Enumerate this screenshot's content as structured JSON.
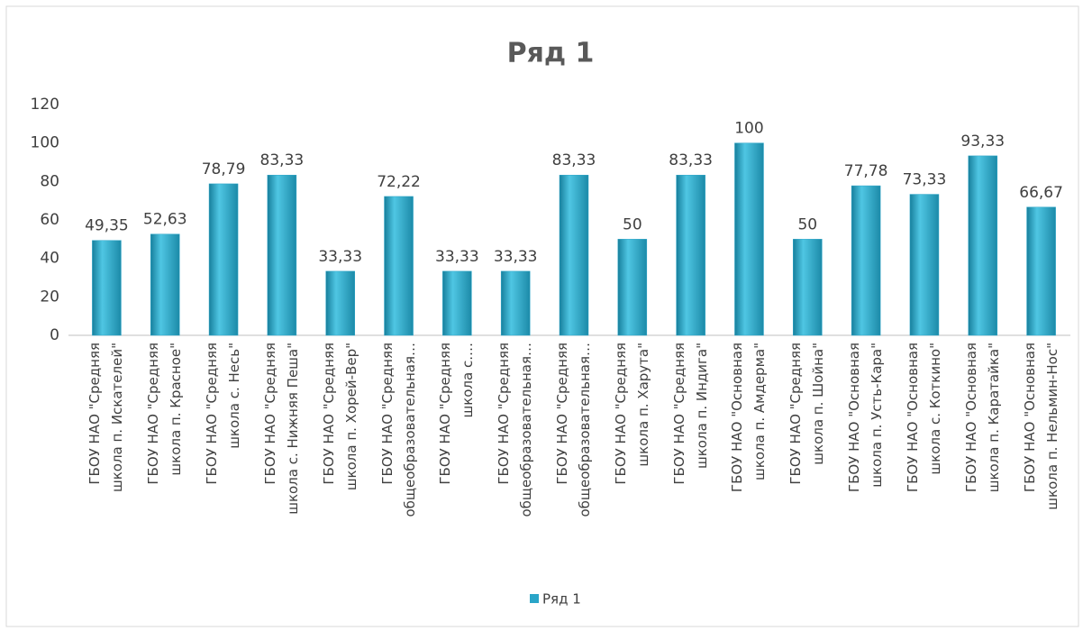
{
  "chart_data": {
    "type": "bar",
    "title": "Ряд 1",
    "categories": [
      "ГБОУ НАО \"Средняя\nшкола п. Искателей\"",
      "ГБОУ НАО  \"Средняя\nшкола п. Красное\"",
      "ГБОУ НАО \"Средняя\nшкола с. Несь\"",
      "ГБОУ НАО \"Средняя\nшкола с. Нижняя Пеша\"",
      "ГБОУ НАО \"Средняя\nшкола п. Хорей-Вер\"",
      "ГБОУ НАО \"Средняя\nобщеобразовательная…",
      "ГБОУ НАО \"Средняя\nшкола с.…",
      "ГБОУ НАО \"Средняя\nобщеобразовательная…",
      "ГБОУ НАО \"Средняя\nобщеобразовательная…",
      "ГБОУ НАО \"Средняя\nшкола п. Харута\"",
      "ГБОУ НАО \"Средняя\nшкола п. Индига\"",
      "ГБОУ НАО \"Основная\nшкола п. Амдерма\"",
      "ГБОУ НАО \"Средняя\nшкола п. Шойна\"",
      "ГБОУ НАО \"Основная\nшкола п. Усть-Кара\"",
      "ГБОУ НАО \"Основная\nшкола с. Коткино\"",
      "ГБОУ НАО \"Основная\nшкола п. Каратайка\"",
      "ГБОУ НАО  \"Основная\nшкола п. Нельмин-Нос\""
    ],
    "series": [
      {
        "name": "Ряд 1",
        "color": "#2aa5c8",
        "values": [
          49.35,
          52.63,
          78.79,
          83.33,
          33.33,
          72.22,
          33.33,
          33.33,
          83.33,
          50,
          83.33,
          100,
          50,
          77.78,
          73.33,
          93.33,
          66.67
        ],
        "value_labels": [
          "49,35",
          "52,63",
          "78,79",
          "83,33",
          "33,33",
          "72,22",
          "33,33",
          "33,33",
          "83,33",
          "50",
          "83,33",
          "100",
          "50",
          "77,78",
          "73,33",
          "93,33",
          "66,67"
        ]
      }
    ],
    "ylim": [
      0,
      120
    ],
    "yticks": [
      0,
      20,
      40,
      60,
      80,
      100,
      120
    ],
    "grid": false,
    "legend": "bottom"
  }
}
